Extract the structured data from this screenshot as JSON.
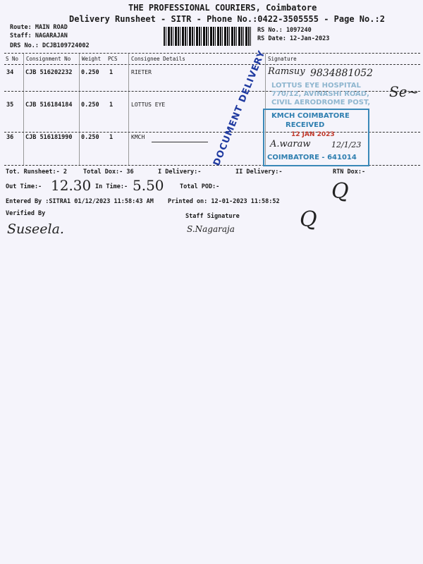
{
  "header": {
    "company": "THE PROFESSIONAL COURIERS, Coimbatore",
    "subtitle": "Delivery Runsheet - SITR - Phone No.:0422-3505555 - Page No.:2",
    "route": "Route: MAIN ROAD",
    "staff": "Staff: NAGARAJAN",
    "drs_no": "DRS No.: DCJB109724002",
    "rs_no": "RS No.: 1097240",
    "rs_date": "RS Date: 12-Jan-2023"
  },
  "table": {
    "columns": [
      "S No",
      "Consignment No",
      "Weight",
      "PCS",
      "Consignee Details",
      "Signature"
    ],
    "rows": [
      {
        "sno": "34",
        "consignment": "CJB 516202232",
        "weight": "0.250",
        "pcs": "1",
        "consignee": "RIETER"
      },
      {
        "sno": "35",
        "consignment": "CJB 516184184",
        "weight": "0.250",
        "pcs": "1",
        "consignee": "LOTTUS EYE"
      },
      {
        "sno": "36",
        "consignment": "CJB 516181990",
        "weight": "0.250",
        "pcs": "1",
        "consignee": "KMCH"
      }
    ]
  },
  "footer": {
    "tot_runsheet": "Tot. Runsheet:- 2",
    "total_dox": "Total Dox:-  36",
    "i_delivery": "I Delivery:-",
    "ii_delivery": "II Delivery:-",
    "rtn_dox": "RTN Dox:-",
    "out_time_label": "Out Time:-",
    "out_time_value": "12.30",
    "in_time_label": "In Time:-",
    "in_time_value": "5.50",
    "total_pod": "Total POD:-",
    "entered_by": "Entered By :SITRA1 01/12/2023 11:58:43 AM",
    "printed_on": "Printed on: 12-01-2023 11:58:52",
    "verified_by": "Verified By",
    "verified_signature": "Suseela.",
    "staff_signature_label": "Staff Signature",
    "staff_signature": "S.Nagaraja"
  },
  "annotations": {
    "handwritten_name": "Ramsuy",
    "handwritten_phone": "9834881052",
    "stamp_document_delivery": "DOCUMENT DELIVERY",
    "stamp_kmch_top": "KMCH COIMBATORE",
    "stamp_kmch_received": "RECEIVED",
    "stamp_kmch_date": "12 JAN 2023",
    "stamp_kmch_bottom": "COIMBATORE - 641014",
    "stamp_lottus_1": "LOTTUS EYE HOSPITAL",
    "stamp_lottus_2": "770/12, AVINASHI ROAD,",
    "stamp_lottus_3": "CIVIL AERODROME POST,",
    "handwritten_receiver": "A.waraw",
    "handwritten_date": "12/1/23"
  }
}
